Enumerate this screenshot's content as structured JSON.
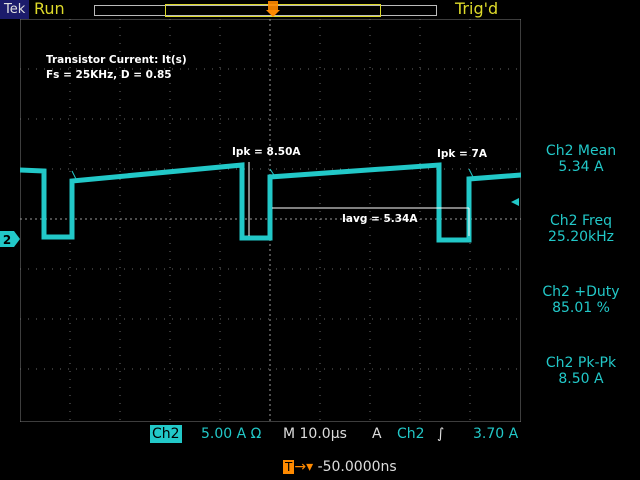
{
  "status": {
    "brand": "Tek",
    "run": "Run",
    "trig": "Trig'd"
  },
  "annotations": {
    "title_line1": "Transistor Current: It(s)",
    "title_line2": "Fs = 25KHz, D = 0.85",
    "ipk1": "Ipk = 8.50A",
    "ipk2": "Ipk = 7A",
    "iavg": "Iavg = 5.34A"
  },
  "measurements": [
    {
      "name": "Ch2 Mean",
      "value": "5.34 A"
    },
    {
      "name": "Ch2 Freq",
      "value": "25.20kHz"
    },
    {
      "name": "Ch2 +Duty",
      "value": "85.01 %"
    },
    {
      "name": "Ch2 Pk-Pk",
      "value": "8.50 A"
    }
  ],
  "settings": {
    "channel": "Ch2",
    "scale": "5.00 A Ω",
    "timebase": "M 10.0µs",
    "trig_mode": "A",
    "trig_channel": "Ch2",
    "trig_slope": "∫",
    "trig_level": "3.70 A",
    "position_marker": "T",
    "position_value": "-50.0000ns",
    "channel_marker": "2"
  },
  "colors": {
    "trace": "#22c8c8",
    "status": "#ddd92a",
    "trigger": "#ff8a00",
    "grid": "#7a7a7a"
  },
  "icons": [
    "trigger-position-icon",
    "trigger-level-arrow-icon",
    "channel-2-marker-icon"
  ]
}
